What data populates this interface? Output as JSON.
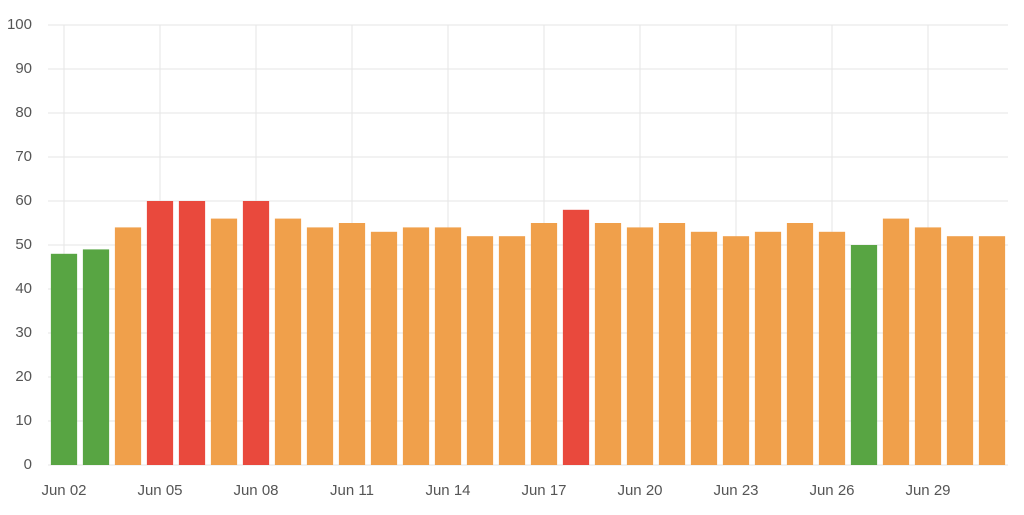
{
  "chart_data": {
    "type": "bar",
    "categories": [
      "Jun 02",
      null,
      null,
      "Jun 05",
      null,
      null,
      "Jun 08",
      null,
      null,
      "Jun 11",
      null,
      null,
      "Jun 14",
      null,
      null,
      "Jun 17",
      null,
      null,
      "Jun 20",
      null,
      null,
      "Jun 23",
      null,
      null,
      "Jun 26",
      null,
      null,
      "Jun 29",
      null,
      null
    ],
    "values": [
      48,
      49,
      54,
      60,
      60,
      56,
      60,
      56,
      54,
      55,
      53,
      54,
      54,
      52,
      52,
      55,
      58,
      55,
      54,
      55,
      53,
      52,
      53,
      55,
      53,
      50,
      56,
      54,
      52,
      52
    ],
    "colors": [
      "#58a543",
      "#58a543",
      "#f0a04b",
      "#e9493d",
      "#e9493d",
      "#f0a04b",
      "#e9493d",
      "#f0a04b",
      "#f0a04b",
      "#f0a04b",
      "#f0a04b",
      "#f0a04b",
      "#f0a04b",
      "#f0a04b",
      "#f0a04b",
      "#f0a04b",
      "#e9493d",
      "#f0a04b",
      "#f0a04b",
      "#f0a04b",
      "#f0a04b",
      "#f0a04b",
      "#f0a04b",
      "#f0a04b",
      "#f0a04b",
      "#58a543",
      "#f0a04b",
      "#f0a04b",
      "#f0a04b",
      "#f0a04b"
    ],
    "ylim": [
      0,
      100
    ],
    "yticks": [
      0,
      10,
      20,
      30,
      40,
      50,
      60,
      70,
      80,
      90,
      100
    ],
    "grid": true
  }
}
